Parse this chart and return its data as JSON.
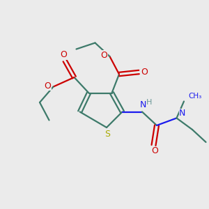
{
  "background_color": "#ebebeb",
  "bond_color": "#3d7a6a",
  "oxygen_color": "#cc0000",
  "nitrogen_color": "#1a1aee",
  "sulfur_color": "#aaaa00",
  "hydrogen_color": "#6a9898",
  "line_width": 1.6,
  "figsize": [
    3.0,
    3.0
  ],
  "dpi": 100,
  "xlim": [
    0,
    10
  ],
  "ylim": [
    0,
    10
  ]
}
